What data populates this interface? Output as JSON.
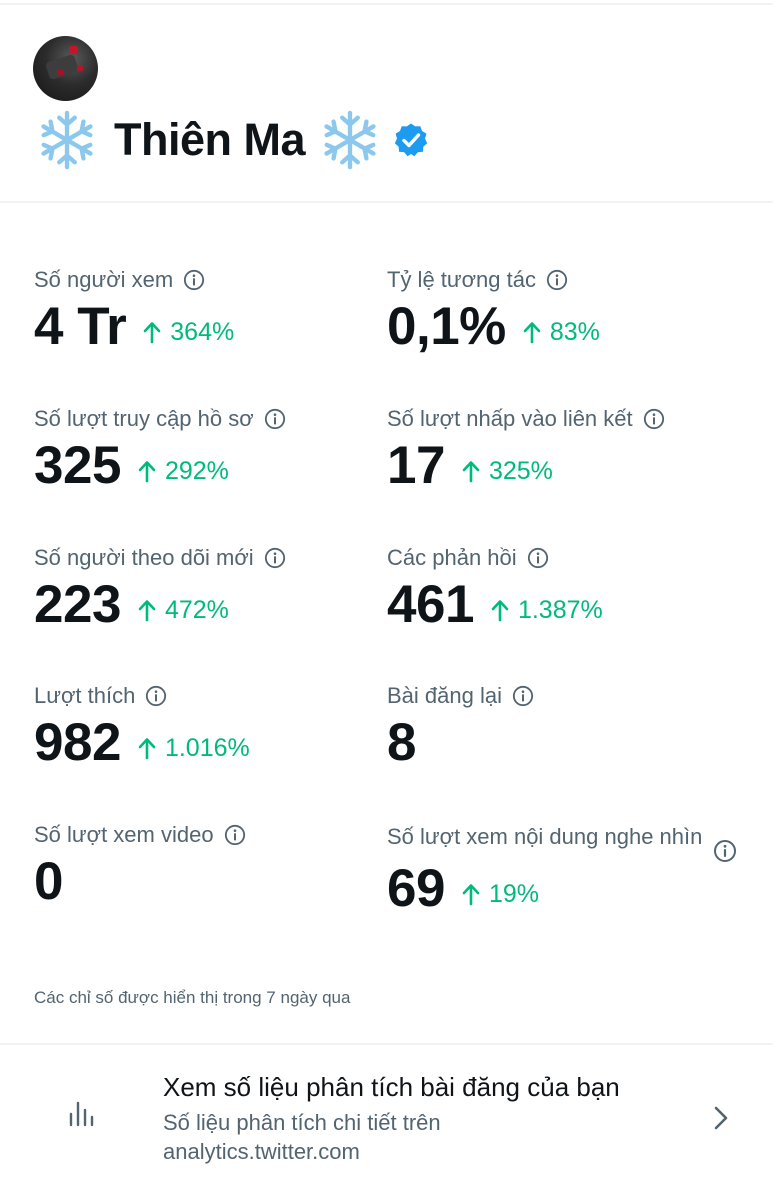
{
  "profile": {
    "display_name": "Thiên Ma",
    "verified": true,
    "left_emoji": "snowflake-icon",
    "right_emoji": "snowflake-icon",
    "verified_color": "#1d9bf0"
  },
  "metrics": [
    {
      "label": "Số người xem",
      "value": "4 Tr",
      "change": "364%",
      "direction": "up"
    },
    {
      "label": "Tỷ lệ tương tác",
      "value": "0,1%",
      "change": "83%",
      "direction": "up"
    },
    {
      "label": "Số lượt truy cập hồ sơ",
      "value": "325",
      "change": "292%",
      "direction": "up"
    },
    {
      "label": "Số lượt nhấp vào liên kết",
      "value": "17",
      "change": "325%",
      "direction": "up"
    },
    {
      "label": "Số người theo dõi mới",
      "value": "223",
      "change": "472%",
      "direction": "up"
    },
    {
      "label": "Các phản hồi",
      "value": "461",
      "change": "1.387%",
      "direction": "up"
    },
    {
      "label": "Lượt thích",
      "value": "982",
      "change": "1.016%",
      "direction": "up"
    },
    {
      "label": "Bài đăng lại",
      "value": "8",
      "change": "",
      "direction": "none"
    },
    {
      "label": "Số lượt xem video",
      "value": "0",
      "change": "",
      "direction": "none"
    },
    {
      "label": "Số lượt xem nội dung nghe nhìn",
      "value": "69",
      "change": "19%",
      "direction": "up"
    }
  ],
  "footnote": "Các chỉ số được hiển thị trong 7 ngày qua",
  "promo": {
    "title": "Xem số liệu phân tích bài đăng của bạn",
    "subtitle": "Số liệu phân tích chi tiết trên analytics.twitter.com",
    "icon": "bar-chart-icon"
  },
  "colors": {
    "positive": "#00ba7c",
    "secondary_text": "#536471",
    "primary_text": "#0f1419",
    "divider": "#eff3f4"
  }
}
